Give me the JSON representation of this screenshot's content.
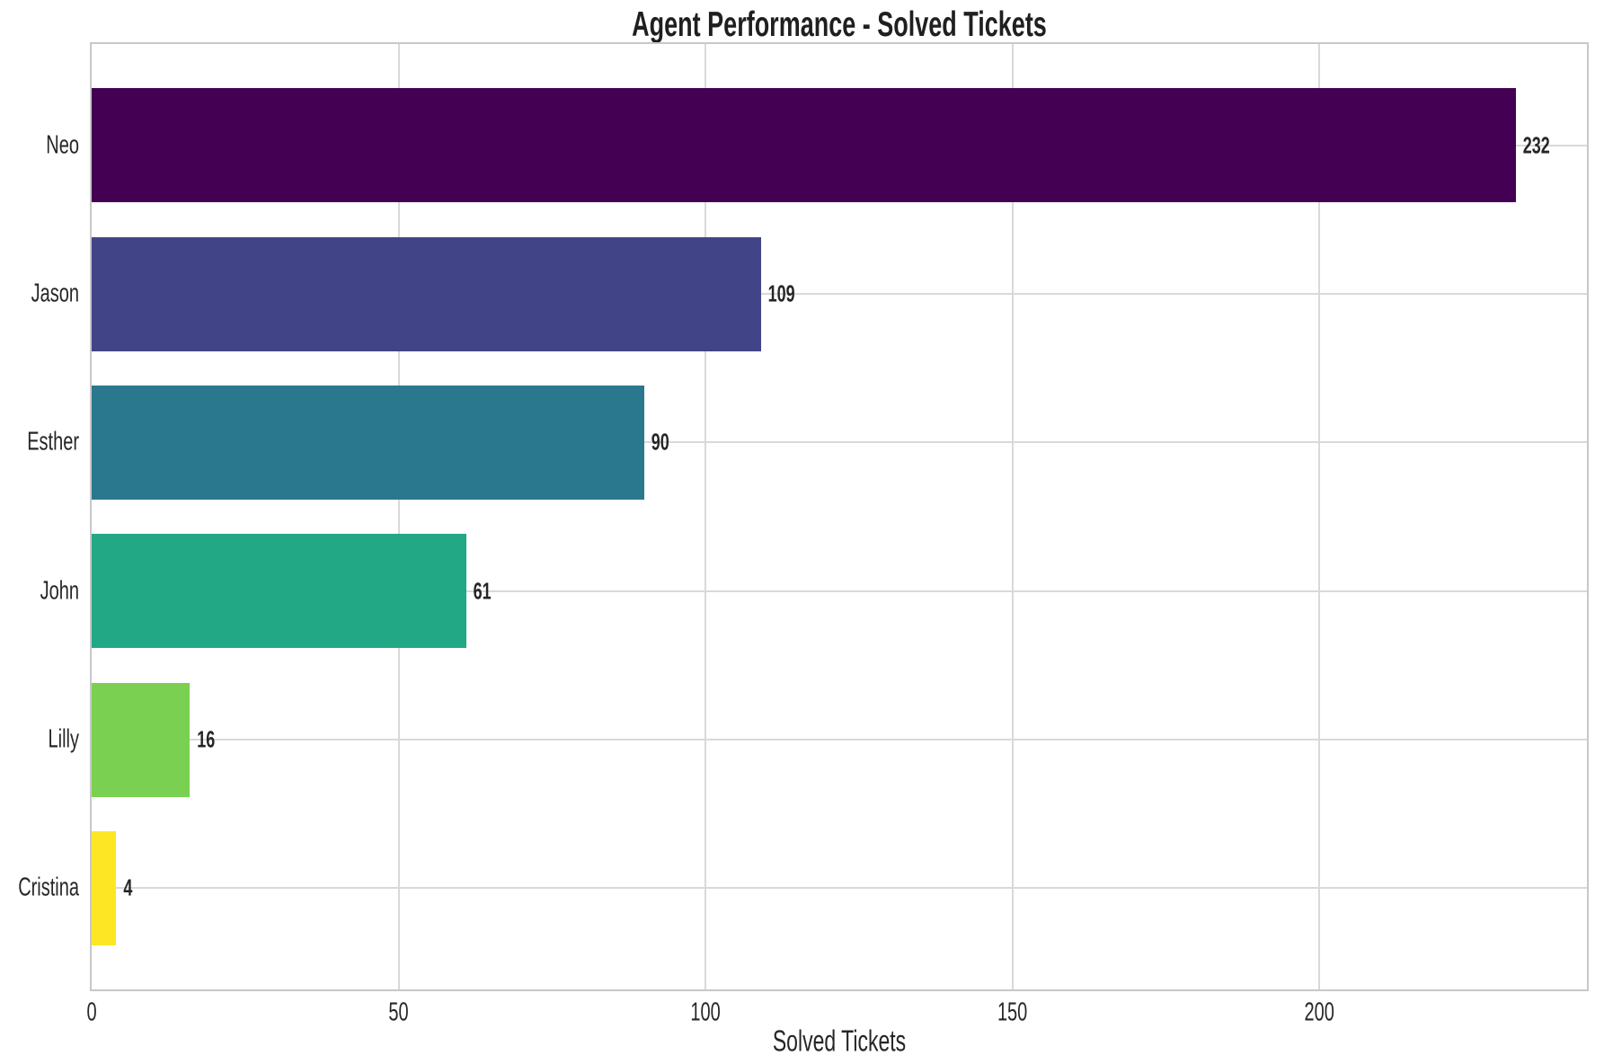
{
  "chart_data": {
    "type": "bar",
    "orientation": "horizontal",
    "title": "Agent Performance - Solved Tickets",
    "xlabel": "Solved Tickets",
    "ylabel": "",
    "categories": [
      "Neo",
      "Jason",
      "Esther",
      "John",
      "Lilly",
      "Cristina"
    ],
    "values": [
      232,
      109,
      90,
      61,
      16,
      4
    ],
    "value_labels": [
      "232",
      "109",
      "90",
      "61",
      "16",
      "4"
    ],
    "bar_colors": [
      "#440154",
      "#414487",
      "#2a788e",
      "#22a884",
      "#7ad151",
      "#fde725"
    ],
    "xticks": [
      0,
      50,
      100,
      150,
      200
    ],
    "xlim": [
      0,
      243.6
    ],
    "grid": true,
    "legend": "none",
    "colors": {
      "plot_background": "#ffffff",
      "grid": "#d9d9d9",
      "border": "#c8c8c8",
      "text": "#262626",
      "title_text": "#1f1f1f"
    }
  }
}
